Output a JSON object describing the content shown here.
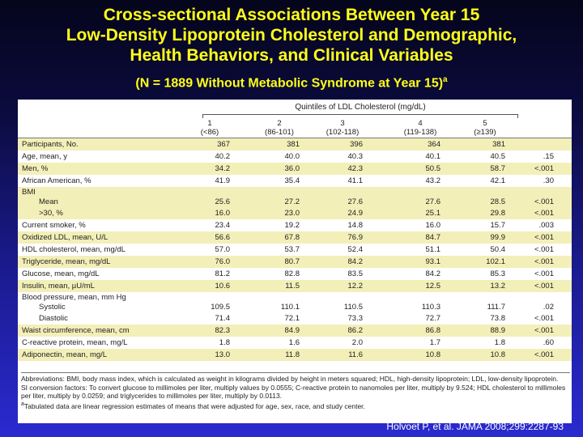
{
  "title": {
    "line1": "Cross-sectional Associations Between Year 15",
    "line2": "Low-Density Lipoprotein Cholesterol and Demographic,",
    "line3": "Health Behaviors, and Clinical Variables",
    "subtitle": "(N = 1889 Without Metabolic Syndrome at Year 15)",
    "subtitle_sup": "a"
  },
  "table": {
    "group_header": "Quintiles of LDL Cholesterol (mg/dL)",
    "columns": [
      {
        "num": "1",
        "range": "(<86)"
      },
      {
        "num": "2",
        "range": "(86-101)"
      },
      {
        "num": "3",
        "range": "(102-118)"
      },
      {
        "num": "4",
        "range": "(119-138)"
      },
      {
        "num": "5",
        "range": "(≥139)"
      }
    ],
    "rows": [
      {
        "label": "Participants, No.",
        "values": [
          "367",
          "381",
          "396",
          "364",
          "381"
        ],
        "p": ""
      },
      {
        "label": "Age, mean, y",
        "values": [
          "40.2",
          "40.0",
          "40.3",
          "40.1",
          "40.5"
        ],
        "p": ".15"
      },
      {
        "label": "Men, %",
        "values": [
          "34.2",
          "36.0",
          "42.3",
          "50.5",
          "58.7"
        ],
        "p": "<.001"
      },
      {
        "label": "African American, %",
        "values": [
          "41.9",
          "35.4",
          "41.1",
          "43.2",
          "42.1"
        ],
        "p": ".30"
      },
      {
        "group": "BMI",
        "label": "Mean",
        "values": [
          "25.6",
          "27.2",
          "27.6",
          "27.6",
          "28.5"
        ],
        "p": "<.001"
      },
      {
        "label": ">30, %",
        "values": [
          "16.0",
          "23.0",
          "24.9",
          "25.1",
          "29.8"
        ],
        "p": "<.001"
      },
      {
        "label": "Current smoker, %",
        "values": [
          "23.4",
          "19.2",
          "14.8",
          "16.0",
          "15.7"
        ],
        "p": ".003"
      },
      {
        "label": "Oxidized LDL, mean, U/L",
        "values": [
          "56.6",
          "67.8",
          "76.9",
          "84.7",
          "99.9"
        ],
        "p": "<.001"
      },
      {
        "label": "HDL cholesterol, mean, mg/dL",
        "values": [
          "57.0",
          "53.7",
          "52.4",
          "51.1",
          "50.4"
        ],
        "p": "<.001"
      },
      {
        "label": "Triglyceride, mean, mg/dL",
        "values": [
          "76.0",
          "80.7",
          "84.2",
          "93.1",
          "102.1"
        ],
        "p": "<.001"
      },
      {
        "label": "Glucose, mean, mg/dL",
        "values": [
          "81.2",
          "82.8",
          "83.5",
          "84.2",
          "85.3"
        ],
        "p": "<.001"
      },
      {
        "label": "Insulin, mean, µU/mL",
        "values": [
          "10.6",
          "11.5",
          "12.2",
          "12.5",
          "13.2"
        ],
        "p": "<.001"
      },
      {
        "group": "Blood pressure, mean, mm Hg",
        "label": "Systolic",
        "values": [
          "109.5",
          "110.1",
          "110.5",
          "110.3",
          "111.7"
        ],
        "p": ".02"
      },
      {
        "label": "Diastolic",
        "values": [
          "71.4",
          "72.1",
          "73.3",
          "72.7",
          "73.8"
        ],
        "p": "<.001"
      },
      {
        "label": "Waist circumference, mean, cm",
        "values": [
          "82.3",
          "84.9",
          "86.2",
          "86.8",
          "88.9"
        ],
        "p": "<.001"
      },
      {
        "label": "C-reactive protein, mean, mg/L",
        "values": [
          "1.8",
          "1.6",
          "2.0",
          "1.7",
          "1.8"
        ],
        "p": ".60"
      },
      {
        "label": "Adiponectin, mean, mg/L",
        "values": [
          "13.0",
          "11.8",
          "11.6",
          "10.8",
          "10.8"
        ],
        "p": "<.001"
      }
    ],
    "footnote_abbrev": "Abbreviations: BMI, body mass index, which is calculated as weight in kilograms divided by height in meters squared; HDL, high-density lipoprotein; LDL, low-density lipoprotein.",
    "footnote_si": "SI conversion factors: To convert glucose to millimoles per liter, multiply values by 0.0555; C-reactive protein to nanomoles per liter, multiply by 9.524; HDL cholesterol to millimoles per liter, multiply by 0.0259; and triglycerides to millimoles per liter, multiply by 0.0113.",
    "footnote_a_mark": "a",
    "footnote_a": "Tabulated data are linear regression estimates of means that were adjusted for age, sex, race, and study center."
  },
  "citation": "Holvoet P, et al. JAMA 2008;299:2287-93"
}
